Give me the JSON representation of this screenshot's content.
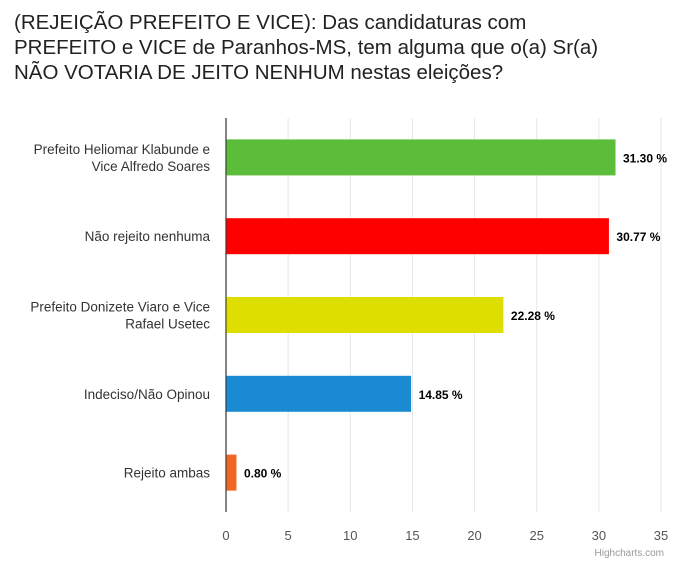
{
  "title_lines": [
    "(REJEIÇÃO PREFEITO E VICE): Das candidaturas com",
    "PREFEITO e VICE de Paranhos-MS, tem alguma que o(a) Sr(a)",
    "NÃO VOTARIA DE JEITO NENHUM nestas eleições?"
  ],
  "credits": "Highcharts.com",
  "chart_data": {
    "type": "bar",
    "orientation": "horizontal",
    "title": "(REJEIÇÃO PREFEITO E VICE): Das candidaturas com PREFEITO e VICE de Paranhos-MS, tem alguma que o(a) Sr(a) NÃO VOTARIA DE JEITO NENHUM nestas eleições?",
    "categories": [
      [
        "Prefeito Heliomar Klabunde e",
        "Vice Alfredo Soares"
      ],
      [
        "Não rejeito nenhuma"
      ],
      [
        "Prefeito Donizete Viaro e Vice",
        "Rafael Usetec"
      ],
      [
        "Indeciso/Não Opinou"
      ],
      [
        "Rejeito ambas"
      ]
    ],
    "values": [
      31.3,
      30.77,
      22.28,
      14.85,
      0.8
    ],
    "data_labels": [
      "31.30 %",
      "30.77 %",
      "22.28 %",
      "14.85 %",
      "0.80 %"
    ],
    "colors": [
      "#5bbd3a",
      "#ff0000",
      "#dede00",
      "#1a8bd2",
      "#f26522"
    ],
    "xlim": [
      0,
      35
    ],
    "ticks": [
      0,
      5,
      10,
      15,
      20,
      25,
      30,
      35
    ],
    "grid": true,
    "legend": "none",
    "xlabel": "",
    "ylabel": ""
  }
}
